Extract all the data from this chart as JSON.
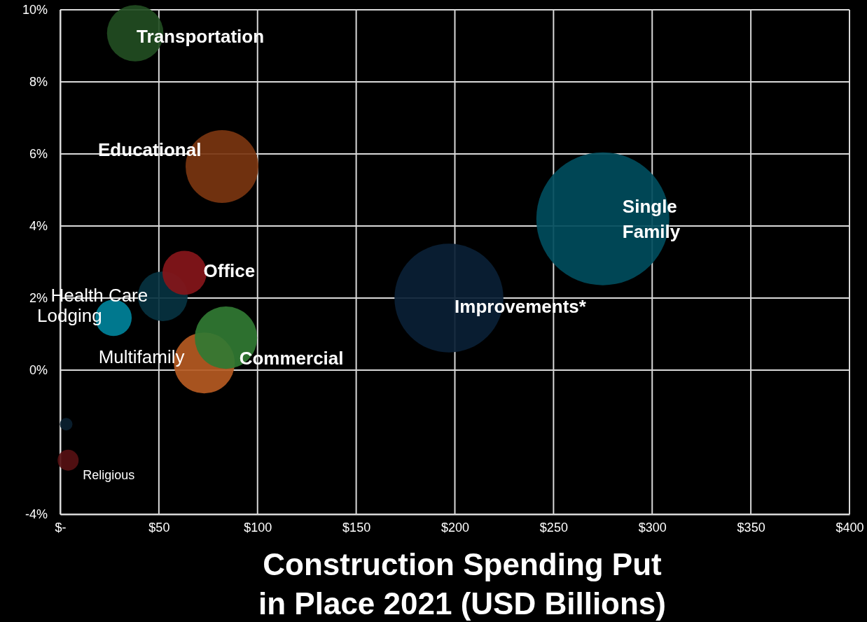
{
  "chart_data": {
    "type": "bubble",
    "xlabel": "Construction Spending Put in Place 2021 (USD Billions)",
    "xlim": [
      0,
      400
    ],
    "ylim": [
      -4,
      10
    ],
    "xticks": [
      {
        "value": 0,
        "label": "$-"
      },
      {
        "value": 50,
        "label": "$50"
      },
      {
        "value": 100,
        "label": "$100"
      },
      {
        "value": 150,
        "label": "$150"
      },
      {
        "value": 200,
        "label": "$200"
      },
      {
        "value": 250,
        "label": "$250"
      },
      {
        "value": 300,
        "label": "$300"
      },
      {
        "value": 350,
        "label": "$350"
      },
      {
        "value": 400,
        "label": "$400"
      }
    ],
    "yticks": [
      {
        "value": -4,
        "label": "-4%"
      },
      {
        "value": 0,
        "label": "0%"
      },
      {
        "value": 2,
        "label": "2%"
      },
      {
        "value": 4,
        "label": "4%"
      },
      {
        "value": 6,
        "label": "6%"
      },
      {
        "value": 8,
        "label": "8%"
      },
      {
        "value": 10,
        "label": "10%"
      }
    ],
    "grid": true,
    "legend": false,
    "series": [
      {
        "name": "Transportation",
        "color": "#224d22",
        "x": [
          38
        ],
        "values": [
          9.35
        ],
        "sizes": [
          0.18
        ]
      },
      {
        "name": "Educational",
        "color": "#7a3510",
        "x": [
          82
        ],
        "values": [
          5.65
        ],
        "sizes": [
          0.3
        ]
      },
      {
        "name": "Single Family",
        "color": "#004c5c",
        "x": [
          275
        ],
        "values": [
          4.2
        ],
        "sizes": [
          1
        ]
      },
      {
        "name": "Improvements*",
        "color": "#0a2035",
        "x": [
          197
        ],
        "values": [
          2.0
        ],
        "sizes": [
          0.67
        ]
      },
      {
        "name": "Health Care",
        "color": "#073240",
        "x": [
          52
        ],
        "values": [
          2.05
        ],
        "sizes": [
          0.14
        ]
      },
      {
        "name": "Office",
        "color": "#85161a",
        "x": [
          63
        ],
        "values": [
          2.7
        ],
        "sizes": [
          0.11
        ]
      },
      {
        "name": "Lodging",
        "color": "#00829a",
        "x": [
          27
        ],
        "values": [
          1.45
        ],
        "sizes": [
          0.075
        ]
      },
      {
        "name": "Multifamily",
        "color": "#b55a22",
        "x": [
          73
        ],
        "values": [
          0.2
        ],
        "sizes": [
          0.21
        ]
      },
      {
        "name": "Commercial",
        "color": "#317a33",
        "x": [
          84
        ],
        "values": [
          0.9
        ],
        "sizes": [
          0.22
        ]
      },
      {
        "color": "#0a2030",
        "x": [
          3
        ],
        "values": [
          -1.5
        ],
        "sizes": [
          0.009
        ]
      },
      {
        "name": "Religious",
        "color": "#561012",
        "x": [
          4
        ],
        "values": [
          -2.5
        ],
        "sizes": [
          0.025
        ]
      }
    ]
  }
}
